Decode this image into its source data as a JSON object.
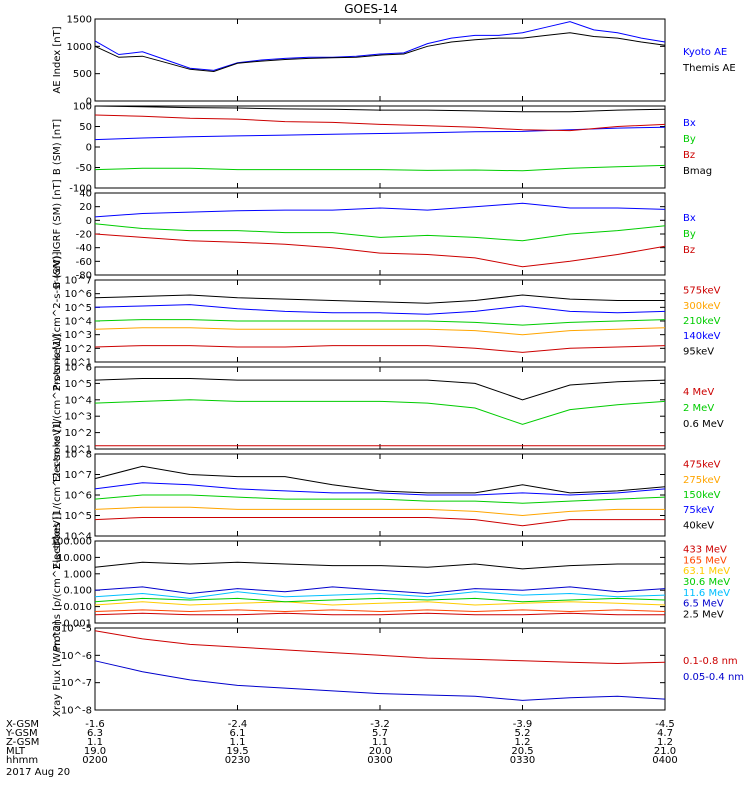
{
  "title": "GOES-14",
  "date_label": "2017 Aug 20",
  "ephemeris": {
    "rows": [
      {
        "label": "X-GSM",
        "values": [
          "-1.6",
          "-2.4",
          "-3.2",
          "-3.9",
          "-4.5"
        ]
      },
      {
        "label": "Y-GSM",
        "values": [
          "6.3",
          "6.1",
          "5.7",
          "5.2",
          "4.7"
        ]
      },
      {
        "label": "Z-GSM",
        "values": [
          "1.1",
          "1.1",
          "1.1",
          "1.2",
          "1.2"
        ]
      },
      {
        "label": "MLT",
        "values": [
          "19.0",
          "19.5",
          "20.0",
          "20.5",
          "21.0"
        ]
      },
      {
        "label": "hhmm",
        "values": [
          "0200",
          "0230",
          "0300",
          "0330",
          "0400"
        ]
      }
    ]
  },
  "chart_data": [
    {
      "type": "line",
      "ylabel": "AE Index [nT]",
      "ylim": [
        0,
        1500
      ],
      "yticks": [
        "0",
        "500",
        "1000",
        "1500"
      ],
      "x": [
        0,
        5,
        10,
        15,
        20,
        25,
        30,
        35,
        40,
        45,
        50,
        55,
        60,
        65,
        70,
        75,
        80,
        85,
        90,
        95,
        100,
        105,
        110,
        115,
        120
      ],
      "series": [
        {
          "name": "Kyoto AE",
          "color": "#0000ff",
          "values": [
            1100,
            850,
            900,
            750,
            600,
            560,
            700,
            750,
            780,
            800,
            800,
            820,
            860,
            880,
            1050,
            1150,
            1200,
            1200,
            1250,
            1350,
            1450,
            1300,
            1250,
            1150,
            1080
          ]
        },
        {
          "name": "Themis AE",
          "color": "#000000",
          "values": [
            1000,
            800,
            820,
            700,
            580,
            540,
            690,
            730,
            760,
            780,
            790,
            800,
            840,
            860,
            1000,
            1080,
            1120,
            1150,
            1150,
            1200,
            1250,
            1180,
            1150,
            1080,
            1020
          ]
        }
      ]
    },
    {
      "type": "line",
      "ylabel": "B (SM) [nT]",
      "ylim": [
        -100,
        100
      ],
      "yticks": [
        "-100",
        "-50",
        "0",
        "50",
        "100"
      ],
      "x": [
        0,
        10,
        20,
        30,
        40,
        50,
        60,
        70,
        80,
        90,
        100,
        110,
        120
      ],
      "series": [
        {
          "name": "Bx",
          "color": "#0000ff",
          "values": [
            18,
            22,
            25,
            27,
            29,
            31,
            33,
            35,
            37,
            38,
            42,
            46,
            48
          ]
        },
        {
          "name": "By",
          "color": "#00cc00",
          "values": [
            -55,
            -52,
            -52,
            -55,
            -55,
            -55,
            -55,
            -57,
            -56,
            -58,
            -52,
            -48,
            -45
          ]
        },
        {
          "name": "Bz",
          "color": "#cc0000",
          "values": [
            78,
            75,
            70,
            68,
            62,
            60,
            55,
            52,
            48,
            42,
            40,
            50,
            55
          ]
        },
        {
          "name": "Bmag",
          "color": "#000000",
          "values": [
            100,
            98,
            96,
            95,
            93,
            92,
            90,
            90,
            88,
            86,
            86,
            90,
            92
          ]
        }
      ]
    },
    {
      "type": "line",
      "ylabel": "B (SM)-IGRF (SM) [nT]",
      "ylim": [
        -80,
        40
      ],
      "yticks": [
        "-80",
        "-60",
        "-40",
        "-20",
        "0",
        "20",
        "40"
      ],
      "x": [
        0,
        10,
        20,
        30,
        40,
        50,
        60,
        70,
        80,
        90,
        100,
        110,
        120
      ],
      "series": [
        {
          "name": "Bx",
          "color": "#0000ff",
          "values": [
            5,
            10,
            12,
            14,
            15,
            15,
            18,
            15,
            20,
            25,
            18,
            18,
            16
          ]
        },
        {
          "name": "By",
          "color": "#00cc00",
          "values": [
            -5,
            -12,
            -15,
            -15,
            -18,
            -18,
            -25,
            -22,
            -25,
            -30,
            -20,
            -15,
            -8
          ]
        },
        {
          "name": "Bz",
          "color": "#cc0000",
          "values": [
            -20,
            -25,
            -30,
            -32,
            -35,
            -40,
            -48,
            -50,
            -55,
            -68,
            -60,
            -50,
            -38
          ]
        }
      ]
    },
    {
      "type": "line",
      "log": true,
      "ylabel": "Protons [1/(cm^2-s-sr-keV)]",
      "ylim_exp": [
        1,
        7
      ],
      "yticks": [
        "10^1",
        "10^2",
        "10^3",
        "10^4",
        "10^5",
        "10^6",
        "10^7"
      ],
      "x": [
        0,
        10,
        20,
        30,
        40,
        50,
        60,
        70,
        80,
        90,
        100,
        110,
        120
      ],
      "series": [
        {
          "name": "575keV",
          "color": "#cc0000",
          "values_log10": [
            2.1,
            2.2,
            2.2,
            2.1,
            2.1,
            2.2,
            2.2,
            2.2,
            2.0,
            1.7,
            2.0,
            2.1,
            2.2
          ]
        },
        {
          "name": "300keV",
          "color": "#ffa500",
          "values_log10": [
            3.4,
            3.5,
            3.5,
            3.4,
            3.4,
            3.4,
            3.4,
            3.4,
            3.3,
            3.0,
            3.3,
            3.4,
            3.5
          ]
        },
        {
          "name": "210keV",
          "color": "#00cc00",
          "values_log10": [
            4.0,
            4.1,
            4.1,
            4.0,
            4.0,
            4.0,
            4.0,
            4.0,
            3.9,
            3.7,
            3.9,
            4.0,
            4.1
          ]
        },
        {
          "name": "140keV",
          "color": "#0000ff",
          "values_log10": [
            5.0,
            5.1,
            5.2,
            4.9,
            4.7,
            4.6,
            4.6,
            4.5,
            4.7,
            5.1,
            4.7,
            4.6,
            4.7
          ]
        },
        {
          "name": "95keV",
          "color": "#000000",
          "values_log10": [
            5.7,
            5.8,
            5.9,
            5.7,
            5.6,
            5.5,
            5.4,
            5.3,
            5.5,
            5.9,
            5.6,
            5.5,
            5.5
          ]
        }
      ]
    },
    {
      "type": "line",
      "log": true,
      "ylabel": "Electrons [1/(cm^2-s-sr-keV)]",
      "ylim_exp": [
        1,
        6
      ],
      "yticks": [
        "10^1",
        "10^2",
        "10^3",
        "10^4",
        "10^5",
        "10^6"
      ],
      "x": [
        0,
        10,
        20,
        30,
        40,
        50,
        60,
        70,
        80,
        90,
        100,
        110,
        120
      ],
      "series": [
        {
          "name": "4 MeV",
          "color": "#cc0000",
          "values_log10": [
            1.2,
            1.2,
            1.2,
            1.2,
            1.2,
            1.2,
            1.2,
            1.2,
            1.2,
            1.2,
            1.2,
            1.2,
            1.2
          ]
        },
        {
          "name": "2 MeV",
          "color": "#00cc00",
          "values_log10": [
            3.8,
            3.9,
            4.0,
            3.9,
            3.9,
            3.9,
            3.9,
            3.8,
            3.5,
            2.5,
            3.4,
            3.7,
            3.9
          ]
        },
        {
          "name": "0.6 MeV",
          "color": "#000000",
          "values_log10": [
            5.2,
            5.3,
            5.3,
            5.2,
            5.2,
            5.2,
            5.2,
            5.2,
            5.0,
            4.0,
            4.9,
            5.1,
            5.2
          ]
        }
      ]
    },
    {
      "type": "line",
      "log": true,
      "ylabel": "Electrons [1/(cm^2-s-sr-keV)]",
      "ylim_exp": [
        4,
        8
      ],
      "yticks": [
        "10^4",
        "10^5",
        "10^6",
        "10^7",
        "10^8"
      ],
      "x": [
        0,
        10,
        20,
        30,
        40,
        50,
        60,
        70,
        80,
        90,
        100,
        110,
        120
      ],
      "series": [
        {
          "name": "475keV",
          "color": "#cc0000",
          "values_log10": [
            4.8,
            4.9,
            4.9,
            4.9,
            4.9,
            4.9,
            4.9,
            4.9,
            4.8,
            4.5,
            4.8,
            4.8,
            4.8
          ]
        },
        {
          "name": "275keV",
          "color": "#ffa500",
          "values_log10": [
            5.3,
            5.4,
            5.4,
            5.3,
            5.3,
            5.3,
            5.3,
            5.3,
            5.2,
            5.0,
            5.2,
            5.3,
            5.3
          ]
        },
        {
          "name": "150keV",
          "color": "#00cc00",
          "values_log10": [
            5.8,
            6.0,
            6.0,
            5.9,
            5.8,
            5.8,
            5.8,
            5.7,
            5.7,
            5.6,
            5.7,
            5.8,
            5.9
          ]
        },
        {
          "name": "75keV",
          "color": "#0000ff",
          "values_log10": [
            6.3,
            6.6,
            6.5,
            6.3,
            6.2,
            6.1,
            6.1,
            6.0,
            6.0,
            6.1,
            6.0,
            6.1,
            6.3
          ]
        },
        {
          "name": "40keV",
          "color": "#000000",
          "values_log10": [
            6.8,
            7.4,
            7.0,
            6.9,
            6.9,
            6.5,
            6.2,
            6.1,
            6.1,
            6.5,
            6.1,
            6.2,
            6.4
          ]
        }
      ]
    },
    {
      "type": "line",
      "log": true,
      "ylabel": "Protons [p/(cm^2-s-sr-keV)]",
      "ylim_exp": [
        -3,
        2
      ],
      "yticks": [
        "0.001",
        "0.010",
        "0.100",
        "1.000",
        "10.000",
        "100.000"
      ],
      "x": [
        0,
        10,
        20,
        30,
        40,
        50,
        60,
        70,
        80,
        90,
        100,
        110,
        120
      ],
      "series": [
        {
          "name": "433 MeV",
          "color": "#cc0000",
          "values_log10": [
            -2.5,
            -2.4,
            -2.5,
            -2.5,
            -2.4,
            -2.5,
            -2.5,
            -2.4,
            -2.5,
            -2.5,
            -2.4,
            -2.5,
            -2.5
          ]
        },
        {
          "name": "165 MeV",
          "color": "#ff4500",
          "values_log10": [
            -2.3,
            -2.2,
            -2.3,
            -2.2,
            -2.3,
            -2.2,
            -2.3,
            -2.2,
            -2.3,
            -2.2,
            -2.3,
            -2.2,
            -2.3
          ]
        },
        {
          "name": "63.1 MeV",
          "color": "#ffcc00",
          "values_log10": [
            -1.9,
            -1.7,
            -1.9,
            -1.8,
            -1.7,
            -1.9,
            -1.8,
            -1.7,
            -1.9,
            -1.8,
            -1.7,
            -1.8,
            -1.9
          ]
        },
        {
          "name": "30.6 MeV",
          "color": "#00cc00",
          "values_log10": [
            -1.7,
            -1.5,
            -1.6,
            -1.5,
            -1.7,
            -1.6,
            -1.5,
            -1.6,
            -1.5,
            -1.7,
            -1.6,
            -1.5,
            -1.6
          ]
        },
        {
          "name": "11.6 MeV",
          "color": "#00bfff",
          "values_log10": [
            -1.4,
            -1.2,
            -1.5,
            -1.1,
            -1.4,
            -1.3,
            -1.2,
            -1.4,
            -1.1,
            -1.3,
            -1.2,
            -1.4,
            -1.3
          ]
        },
        {
          "name": "6.5 MeV",
          "color": "#0000cc",
          "values_log10": [
            -1.0,
            -0.8,
            -1.2,
            -0.9,
            -1.1,
            -0.8,
            -1.0,
            -1.2,
            -0.9,
            -1.0,
            -0.8,
            -1.1,
            -0.9
          ]
        },
        {
          "name": "2.5 MeV",
          "color": "#000000",
          "values_log10": [
            0.4,
            0.7,
            0.6,
            0.7,
            0.6,
            0.5,
            0.5,
            0.4,
            0.6,
            0.3,
            0.5,
            0.6,
            0.6
          ]
        }
      ]
    },
    {
      "type": "line",
      "log": true,
      "ylabel": "Xray Flux [W/m^2]",
      "ylim_exp": [
        -8,
        -5
      ],
      "yticks": [
        "10^-8",
        "10^-7",
        "10^-6",
        "10^-5"
      ],
      "x": [
        0,
        10,
        20,
        30,
        40,
        50,
        60,
        70,
        80,
        90,
        100,
        110,
        120
      ],
      "series": [
        {
          "name": "0.1-0.8 nm",
          "color": "#cc0000",
          "values_log10": [
            -5.1,
            -5.4,
            -5.6,
            -5.7,
            -5.8,
            -5.9,
            -6.0,
            -6.1,
            -6.15,
            -6.2,
            -6.25,
            -6.3,
            -6.25
          ]
        },
        {
          "name": "0.05-0.4 nm",
          "color": "#0000cc",
          "values_log10": [
            -6.2,
            -6.6,
            -6.9,
            -7.1,
            -7.2,
            -7.3,
            -7.4,
            -7.45,
            -7.5,
            -7.65,
            -7.55,
            -7.5,
            -7.6
          ]
        }
      ]
    }
  ]
}
